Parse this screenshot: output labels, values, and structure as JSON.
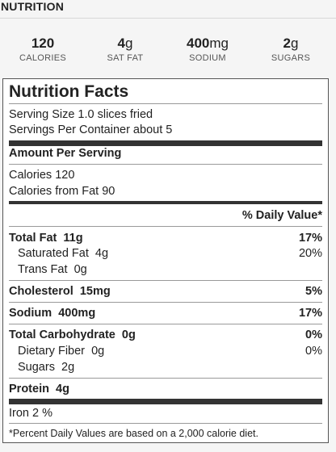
{
  "section_title": "NUTRITION",
  "summary": [
    {
      "value": "120",
      "unit": "",
      "label": "CALORIES"
    },
    {
      "value": "4",
      "unit": "g",
      "label": "SAT FAT"
    },
    {
      "value": "400",
      "unit": "mg",
      "label": "SODIUM"
    },
    {
      "value": "2",
      "unit": "g",
      "label": "SUGARS"
    }
  ],
  "facts": {
    "title": "Nutrition Facts",
    "serving_size": "Serving Size  1.0 slices fried",
    "servings_per_container": "Servings Per Container  about 5",
    "amount_per_serving": "Amount Per Serving",
    "calories": "Calories  120",
    "calories_from_fat": "Calories from Fat  90",
    "daily_value_header": "% Daily Value*",
    "rows": [
      {
        "label": "Total Fat",
        "amount": "11g",
        "dv": "17%"
      },
      {
        "label": "Saturated Fat",
        "amount": "4g",
        "dv": "20%"
      },
      {
        "label": "Trans Fat",
        "amount": "0g",
        "dv": ""
      },
      {
        "label": "Cholesterol",
        "amount": "15mg",
        "dv": "5%"
      },
      {
        "label": "Sodium",
        "amount": "400mg",
        "dv": "17%"
      },
      {
        "label": "Total Carbohydrate",
        "amount": "0g",
        "dv": "0%"
      },
      {
        "label": "Dietary Fiber",
        "amount": "0g",
        "dv": "0%"
      },
      {
        "label": "Sugars",
        "amount": "2g",
        "dv": ""
      },
      {
        "label": "Protein",
        "amount": "4g",
        "dv": ""
      }
    ],
    "iron": "Iron  2 %",
    "footnote": "*Percent Daily Values are based on a 2,000 calorie diet."
  }
}
